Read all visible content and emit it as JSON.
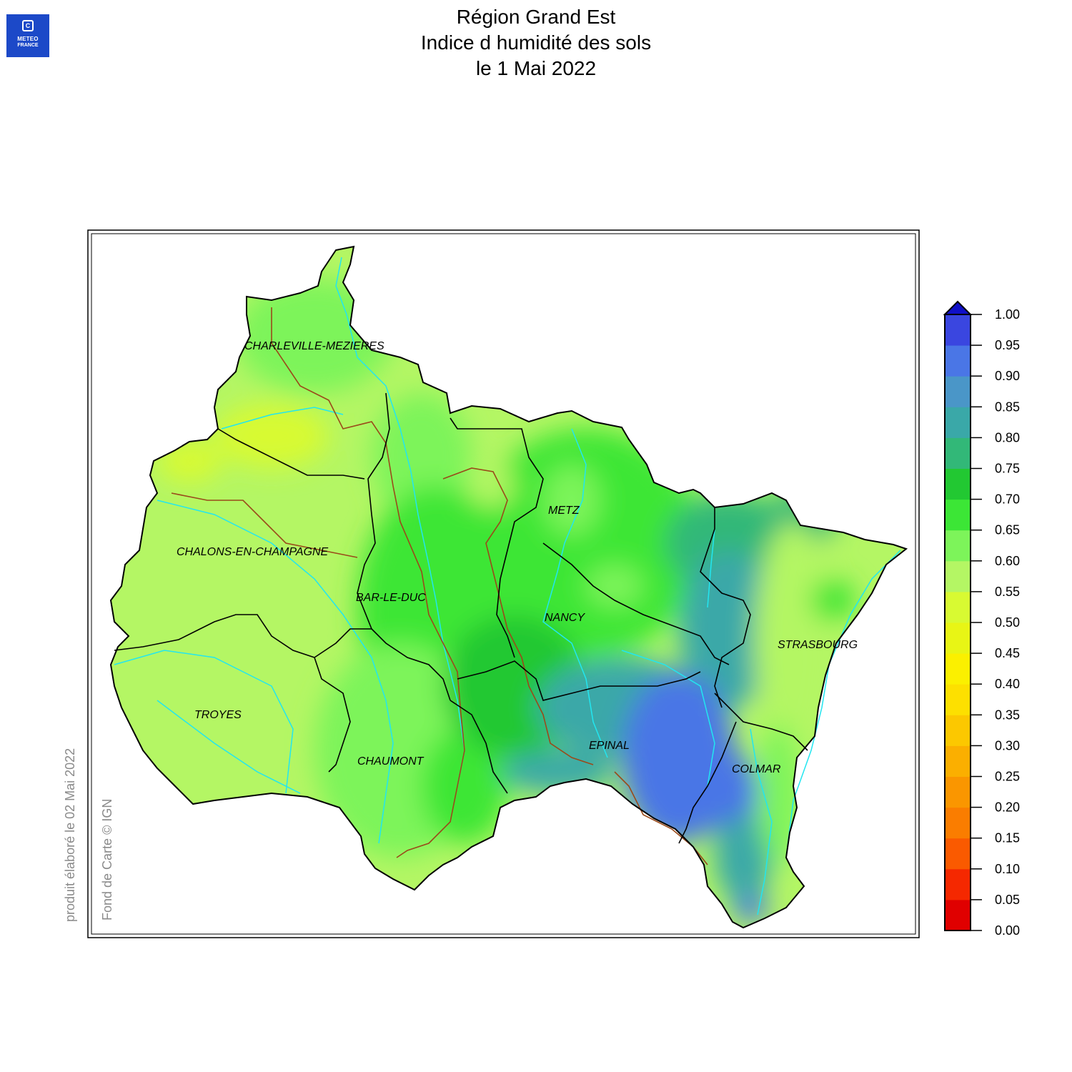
{
  "header": {
    "logo_line1": "METEO",
    "logo_line2": "FRANCE",
    "title_line1": "Région Grand Est",
    "title_line2": "Indice d humidité des sols",
    "title_line3": "le 1 Mai 2022"
  },
  "credits": {
    "produced": "produit élaboré le 02 Mai 2022",
    "basemap": "Fond de Carte © IGN"
  },
  "cities": [
    {
      "name": "CHARLEVILLE-MEZIERES"
    },
    {
      "name": "METZ"
    },
    {
      "name": "CHALONS-EN-CHAMPAGNE"
    },
    {
      "name": "BAR-LE-DUC"
    },
    {
      "name": "NANCY"
    },
    {
      "name": "STRASBOURG"
    },
    {
      "name": "TROYES"
    },
    {
      "name": "EPINAL"
    },
    {
      "name": "CHAUMONT"
    },
    {
      "name": "COLMAR"
    }
  ],
  "legend": {
    "levels": [
      "0.00",
      "0.05",
      "0.10",
      "0.15",
      "0.20",
      "0.25",
      "0.30",
      "0.35",
      "0.40",
      "0.45",
      "0.50",
      "0.55",
      "0.60",
      "0.65",
      "0.70",
      "0.75",
      "0.80",
      "0.85",
      "0.90",
      "0.95",
      "1.00"
    ],
    "colors": [
      "#e00000",
      "#f52800",
      "#fa5a00",
      "#fa7d00",
      "#fa9600",
      "#fbaf00",
      "#fcc800",
      "#fde000",
      "#fbf000",
      "#e8f515",
      "#d8fa32",
      "#b4f664",
      "#7df45a",
      "#3ce636",
      "#22c832",
      "#32b878",
      "#3aa8a8",
      "#4a96c8",
      "#4a76e6",
      "#3a46e0",
      "#2222dc"
    ],
    "overflow_color": "#1010c8"
  }
}
